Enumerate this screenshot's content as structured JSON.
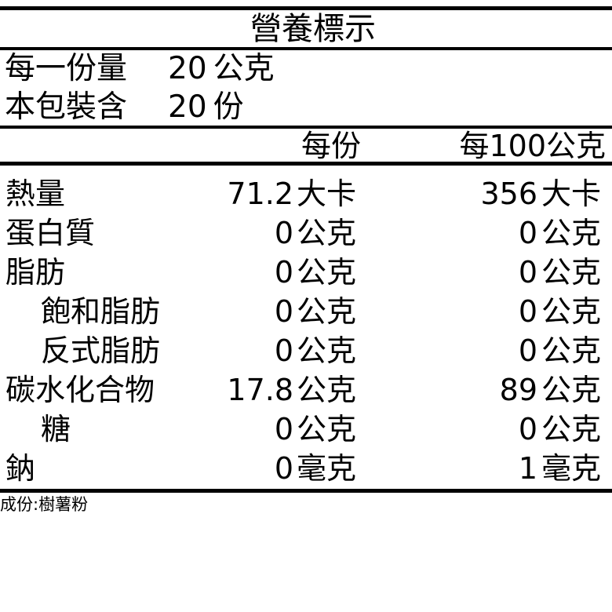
{
  "title": "營養標示",
  "serving": {
    "label": "每一份量",
    "value": "20",
    "unit": "公克"
  },
  "package": {
    "label": "本包裝含",
    "value": "20",
    "unit": "份"
  },
  "columns": {
    "per_serving": "每份",
    "per_100g": "每100公克"
  },
  "rows": [
    {
      "name": "熱量",
      "indent": false,
      "serving": "71.2",
      "serving_unit": "大卡",
      "per100": "356",
      "per100_unit": "大卡"
    },
    {
      "name": "蛋白質",
      "indent": false,
      "serving": "0",
      "serving_unit": "公克",
      "per100": "0",
      "per100_unit": "公克"
    },
    {
      "name": "脂肪",
      "indent": false,
      "serving": "0",
      "serving_unit": "公克",
      "per100": "0",
      "per100_unit": "公克"
    },
    {
      "name": "飽和脂肪",
      "indent": true,
      "serving": "0",
      "serving_unit": "公克",
      "per100": "0",
      "per100_unit": "公克"
    },
    {
      "name": "反式脂肪",
      "indent": true,
      "serving": "0",
      "serving_unit": "公克",
      "per100": "0",
      "per100_unit": "公克"
    },
    {
      "name": "碳水化合物",
      "indent": false,
      "serving": "17.8",
      "serving_unit": "公克",
      "per100": "89",
      "per100_unit": "公克"
    },
    {
      "name": "糖",
      "indent": true,
      "serving": "0",
      "serving_unit": "公克",
      "per100": "0",
      "per100_unit": "公克"
    },
    {
      "name": "鈉",
      "indent": false,
      "serving": "0",
      "serving_unit": "毫克",
      "per100": "1",
      "per100_unit": "毫克"
    }
  ],
  "ingredients": "成份:樹薯粉"
}
